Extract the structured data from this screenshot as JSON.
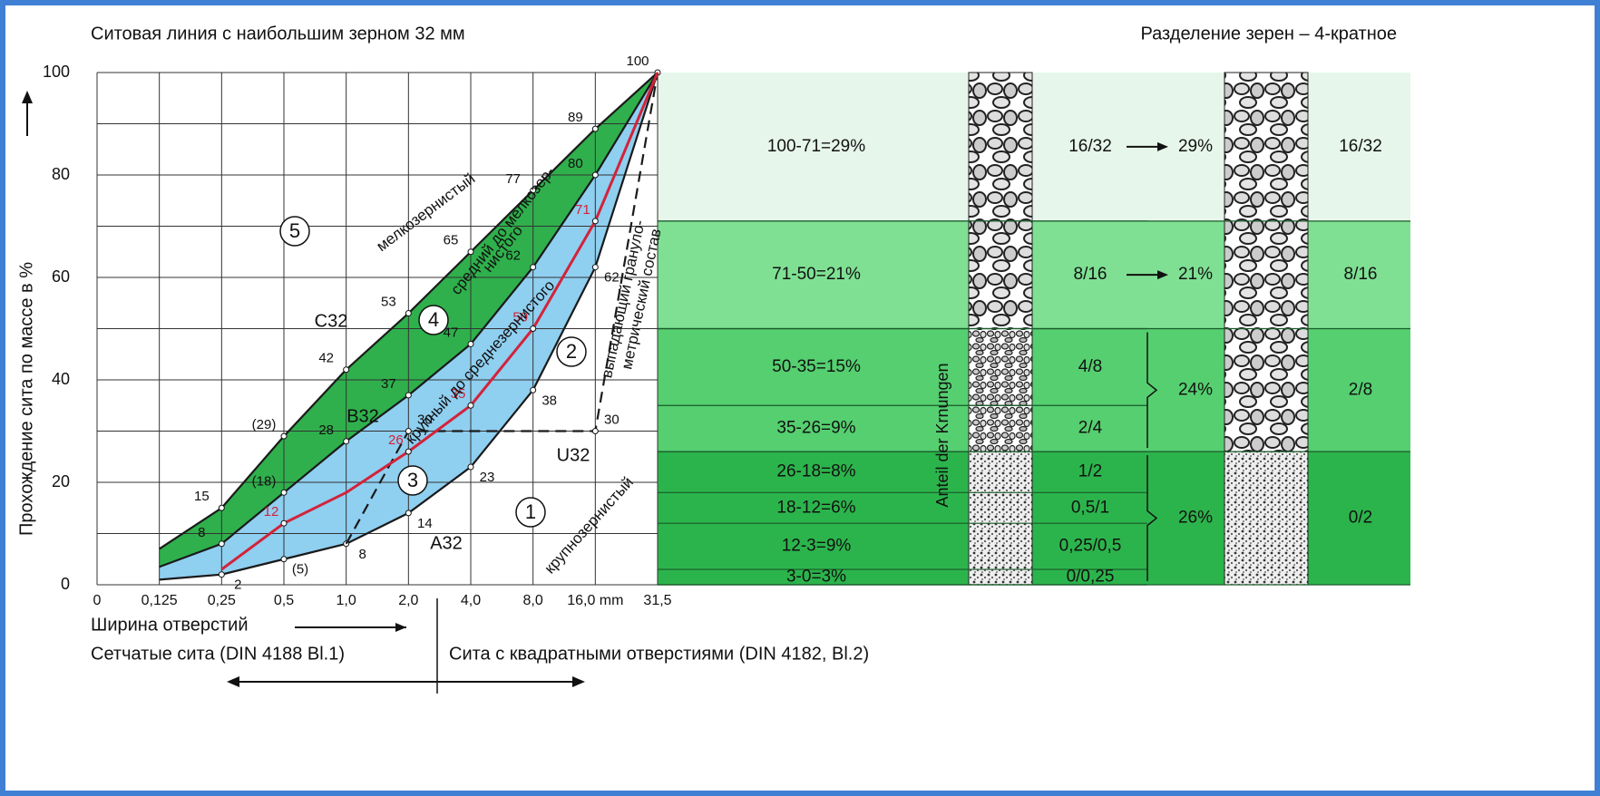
{
  "chart_data": {
    "type": "line",
    "title": "Ситовая линия с наибольшим зерном 32 мм",
    "right_title": "Разделение зерен – 4-кратное",
    "y_label": "Прохождение сита по массе в %",
    "x_label": "Ширина отверстий",
    "x_sections": [
      "Сетчатые сита (DIN 4188 Bl.1)",
      "Сита с квадратными отверстиями (DIN 4182, Bl.2)"
    ],
    "categories": [
      "0",
      "0,125",
      "0,25",
      "0,5",
      "1,0",
      "2,0",
      "4,0",
      "8,0",
      "16,0 mm",
      "31,5"
    ],
    "ylim": [
      0,
      100
    ],
    "yticks": [
      0,
      20,
      40,
      60,
      80,
      100
    ],
    "grid": true,
    "series": [
      {
        "name": "C32",
        "color": "#1a1a1a",
        "values": [
          null,
          7,
          15,
          29,
          42,
          53,
          65,
          77,
          89,
          100
        ],
        "value_labels": [
          null,
          null,
          "15",
          "(29)",
          "42",
          "53",
          "65",
          "77",
          "89",
          "100"
        ]
      },
      {
        "name": "B32",
        "color": "#1a1a1a",
        "values": [
          null,
          3.5,
          8,
          18,
          28,
          37,
          47,
          62,
          80,
          100
        ],
        "value_labels": [
          null,
          null,
          "8",
          "(18)",
          "28",
          "37",
          "47",
          "62",
          "80",
          null
        ]
      },
      {
        "name": "A32",
        "color": "#1a1a1a",
        "values": [
          null,
          1,
          2,
          5,
          8,
          14,
          23,
          38,
          62,
          100
        ],
        "value_labels": [
          null,
          null,
          "2",
          "(5)",
          "8",
          "14",
          "23",
          "38",
          "62",
          null
        ]
      },
      {
        "name": "U32",
        "color": "#1a1a1a",
        "dashed": true,
        "values": [
          null,
          null,
          null,
          null,
          8,
          30,
          30,
          30,
          30,
          100
        ],
        "value_labels": [
          null,
          null,
          null,
          null,
          null,
          "30",
          null,
          null,
          "30",
          null
        ]
      },
      {
        "color": "#d3233a",
        "values": [
          null,
          null,
          3,
          12,
          18,
          26,
          35,
          50,
          71,
          100
        ],
        "value_labels": [
          null,
          null,
          null,
          "12",
          null,
          "26",
          "35",
          "50",
          "71",
          null
        ]
      }
    ],
    "zones": [
      {
        "color": "#2fb04c"
      },
      {
        "color": "#8fcff0"
      }
    ],
    "annotations": [
      "мелкозернистый",
      "средний до мелкозер-",
      "нистого",
      "крупный до среднезернистого",
      "выпадающий грануло-",
      "метрический состав",
      "крупнозернистый",
      "1",
      "2",
      "3",
      "4",
      "5"
    ],
    "fractions": {
      "axis_label": "Anteil der Krnungen",
      "rows": [
        {
          "range": "100-71=29%",
          "from": 100,
          "to": 71,
          "fraction": "16/32"
        },
        {
          "range": "71-50=21%",
          "from": 71,
          "to": 50,
          "fraction": "8/16"
        },
        {
          "range": "50-35=15%",
          "from": 50,
          "to": 35,
          "fraction": "4/8"
        },
        {
          "range": "35-26=9%",
          "from": 35,
          "to": 26,
          "fraction": "2/4"
        },
        {
          "range": "26-18=8%",
          "from": 26,
          "to": 18,
          "fraction": "1/2"
        },
        {
          "range": "18-12=6%",
          "from": 18,
          "to": 12,
          "fraction": "0,5/1"
        },
        {
          "range": "12-3=9%",
          "from": 12,
          "to": 3,
          "fraction": "0,25/0,5"
        },
        {
          "range": "3-0=3%",
          "from": 3,
          "to": 0,
          "fraction": "0/0,25"
        }
      ],
      "groups": [
        {
          "share": "29%",
          "from": 100,
          "to": 71,
          "fraction": "16/32",
          "color": "#e6f6ea"
        },
        {
          "share": "21%",
          "from": 71,
          "to": 50,
          "fraction": "8/16",
          "color": "#7fe093"
        },
        {
          "share": "24%",
          "from": 50,
          "to": 26,
          "fraction": "2/8",
          "color": "#55cf70"
        },
        {
          "share": "26%",
          "from": 26,
          "to": 0,
          "fraction": "0/2",
          "color": "#2cb44c"
        }
      ]
    }
  }
}
